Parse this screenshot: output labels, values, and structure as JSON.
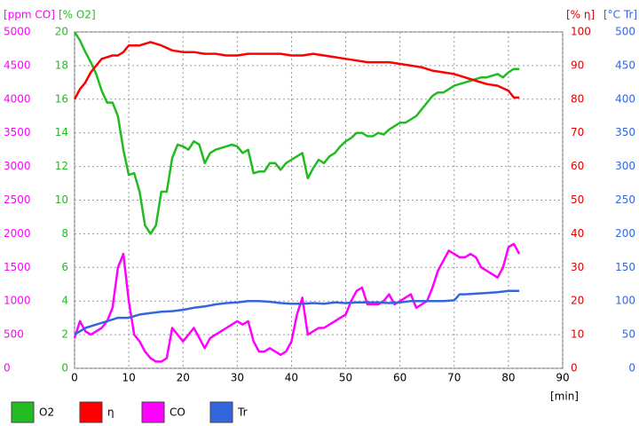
{
  "chart_data": {
    "type": "line",
    "x_label": "[min]",
    "xlim": [
      0,
      90
    ],
    "xticks": [
      0,
      10,
      20,
      30,
      40,
      50,
      60,
      70,
      80,
      90
    ],
    "grid": true,
    "axes": [
      {
        "label": "[ppm CO]",
        "side": "left",
        "color": "#ff00ff",
        "ylim": [
          0,
          5000
        ],
        "yticks": [
          0,
          500,
          1000,
          1500,
          2000,
          2500,
          3000,
          3500,
          4000,
          4500,
          5000
        ]
      },
      {
        "label": "[% O2]",
        "side": "left",
        "color": "#22bb22",
        "ylim": [
          0,
          20
        ],
        "yticks": [
          0,
          2,
          4,
          6,
          8,
          10,
          12,
          14,
          16,
          18,
          20
        ]
      },
      {
        "label": "[% η]",
        "side": "right",
        "color": "#e00000",
        "ylim": [
          0,
          100
        ],
        "yticks": [
          0,
          10,
          20,
          30,
          40,
          50,
          60,
          70,
          80,
          90,
          100
        ]
      },
      {
        "label": "[°C Tr]",
        "side": "right",
        "color": "#3366dd",
        "ylim": [
          0,
          500
        ],
        "yticks": [
          0,
          50,
          100,
          150,
          200,
          250,
          300,
          350,
          400,
          450,
          500
        ]
      }
    ],
    "series": [
      {
        "name": "O2",
        "color": "#22bb22",
        "axis": 1,
        "x": [
          0,
          1,
          2,
          3,
          4,
          5,
          6,
          7,
          8,
          9,
          10,
          11,
          12,
          13,
          14,
          15,
          16,
          17,
          18,
          19,
          20,
          21,
          22,
          23,
          24,
          25,
          26,
          27,
          28,
          29,
          30,
          31,
          32,
          33,
          34,
          35,
          36,
          37,
          38,
          39,
          40,
          41,
          42,
          43,
          44,
          45,
          46,
          47,
          48,
          49,
          50,
          51,
          52,
          53,
          54,
          55,
          56,
          57,
          58,
          59,
          60,
          61,
          62,
          63,
          64,
          65,
          66,
          67,
          68,
          69,
          70,
          71,
          72,
          73,
          74,
          75,
          76,
          77,
          78,
          79,
          80,
          81,
          82
        ],
        "values": [
          20,
          19.5,
          18.8,
          18.2,
          17.5,
          16.5,
          15.8,
          15.8,
          15,
          13,
          11.5,
          11.6,
          10.5,
          8.5,
          8,
          8.5,
          10.5,
          10.5,
          12.5,
          13.3,
          13.2,
          13,
          13.5,
          13.3,
          12.2,
          12.8,
          13,
          13.1,
          13.2,
          13.3,
          13.2,
          12.8,
          13,
          11.6,
          11.7,
          11.7,
          12.2,
          12.2,
          11.8,
          12.2,
          12.4,
          12.6,
          12.8,
          11.3,
          11.9,
          12.4,
          12.2,
          12.6,
          12.8,
          13.2,
          13.5,
          13.7,
          14,
          14,
          13.8,
          13.8,
          14,
          13.9,
          14.2,
          14.4,
          14.6,
          14.6,
          14.8,
          15,
          15.4,
          15.8,
          16.2,
          16.4,
          16.4,
          16.6,
          16.8,
          16.9,
          17,
          17.1,
          17.2,
          17.3,
          17.3,
          17.4,
          17.5,
          17.3,
          17.6,
          17.8,
          17.8
        ]
      },
      {
        "name": "η",
        "color": "#ff0000",
        "axis": 2,
        "x": [
          0,
          1,
          2,
          3,
          4,
          5,
          6,
          7,
          8,
          9,
          10,
          12,
          14,
          16,
          18,
          20,
          22,
          24,
          26,
          28,
          30,
          32,
          34,
          36,
          38,
          40,
          42,
          44,
          46,
          48,
          50,
          52,
          54,
          56,
          58,
          60,
          62,
          64,
          66,
          68,
          70,
          72,
          74,
          76,
          78,
          80,
          81,
          82
        ],
        "values": [
          80,
          83,
          85,
          88,
          90,
          92,
          92.5,
          93,
          93,
          94,
          96,
          96,
          97,
          96,
          94.5,
          94,
          94,
          93.5,
          93.5,
          93,
          93,
          93.5,
          93.5,
          93.5,
          93.5,
          93,
          93,
          93.5,
          93,
          92.5,
          92,
          91.5,
          91,
          91,
          91,
          90.5,
          90,
          89.5,
          88.5,
          88,
          87.5,
          86.5,
          85.5,
          84.5,
          84,
          82.5,
          80.5,
          80.5
        ]
      },
      {
        "name": "CO",
        "color": "#ff00ff",
        "axis": 0,
        "x": [
          0,
          1,
          2,
          3,
          4,
          5,
          6,
          7,
          8,
          9,
          10,
          11,
          12,
          13,
          14,
          15,
          16,
          17,
          18,
          19,
          20,
          21,
          22,
          23,
          24,
          25,
          26,
          27,
          28,
          29,
          30,
          31,
          32,
          33,
          34,
          35,
          36,
          37,
          38,
          39,
          40,
          41,
          42,
          43,
          44,
          45,
          46,
          47,
          48,
          49,
          50,
          51,
          52,
          53,
          54,
          55,
          56,
          57,
          58,
          59,
          60,
          61,
          62,
          63,
          64,
          65,
          66,
          67,
          68,
          69,
          70,
          71,
          72,
          73,
          74,
          75,
          76,
          77,
          78,
          79,
          80,
          81,
          82
        ],
        "values": [
          450,
          700,
          550,
          500,
          550,
          600,
          700,
          900,
          1500,
          1700,
          1000,
          500,
          400,
          250,
          150,
          100,
          100,
          150,
          600,
          500,
          400,
          500,
          600,
          450,
          300,
          450,
          500,
          550,
          600,
          650,
          700,
          650,
          700,
          400,
          250,
          250,
          300,
          250,
          200,
          250,
          400,
          800,
          1050,
          500,
          550,
          600,
          600,
          650,
          700,
          750,
          800,
          1000,
          1150,
          1200,
          950,
          950,
          950,
          1000,
          1100,
          950,
          1000,
          1050,
          1100,
          900,
          950,
          1000,
          1200,
          1450,
          1600,
          1750,
          1700,
          1650,
          1650,
          1700,
          1650,
          1500,
          1450,
          1400,
          1350,
          1500,
          1800,
          1850,
          1700
        ]
      },
      {
        "name": "Tr",
        "color": "#3366dd",
        "axis": 3,
        "x": [
          0,
          2,
          4,
          6,
          8,
          10,
          12,
          14,
          16,
          18,
          20,
          22,
          24,
          26,
          28,
          30,
          32,
          34,
          36,
          38,
          40,
          42,
          44,
          46,
          48,
          50,
          52,
          54,
          56,
          58,
          60,
          62,
          64,
          66,
          68,
          70,
          71,
          72,
          74,
          76,
          78,
          80,
          82
        ],
        "values": [
          50,
          60,
          65,
          70,
          75,
          75,
          80,
          82,
          84,
          85,
          87,
          90,
          92,
          95,
          97,
          98,
          100,
          100,
          99,
          97,
          96,
          96,
          97,
          96,
          98,
          97,
          98,
          98,
          98,
          97,
          98,
          100,
          100,
          100,
          100,
          101,
          110,
          110,
          111,
          112,
          113,
          115,
          115
        ]
      }
    ]
  }
}
